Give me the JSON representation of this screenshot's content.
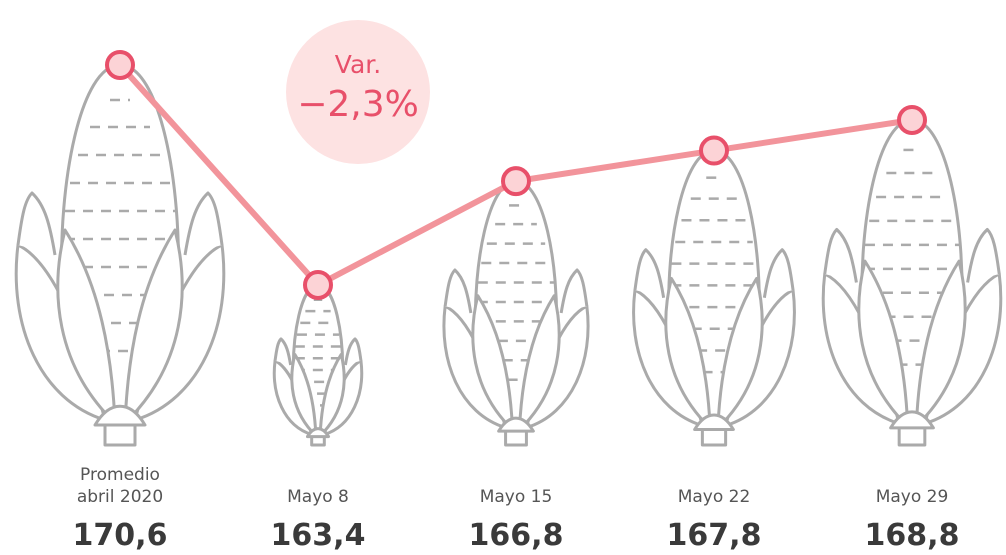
{
  "chart_data": {
    "type": "line",
    "categories": [
      "Promedio abril 2020",
      "Mayo 8",
      "Mayo 15",
      "Mayo 22",
      "Mayo 29"
    ],
    "values": [
      170.6,
      163.4,
      166.8,
      167.8,
      168.8
    ],
    "value_labels": [
      "170,6",
      "163,4",
      "166,8",
      "167,8",
      "168,8"
    ],
    "color": "#f2949b",
    "marker_color": "#e8506a",
    "annotation": {
      "title": "Var.",
      "text": "−2,3%"
    }
  }
}
